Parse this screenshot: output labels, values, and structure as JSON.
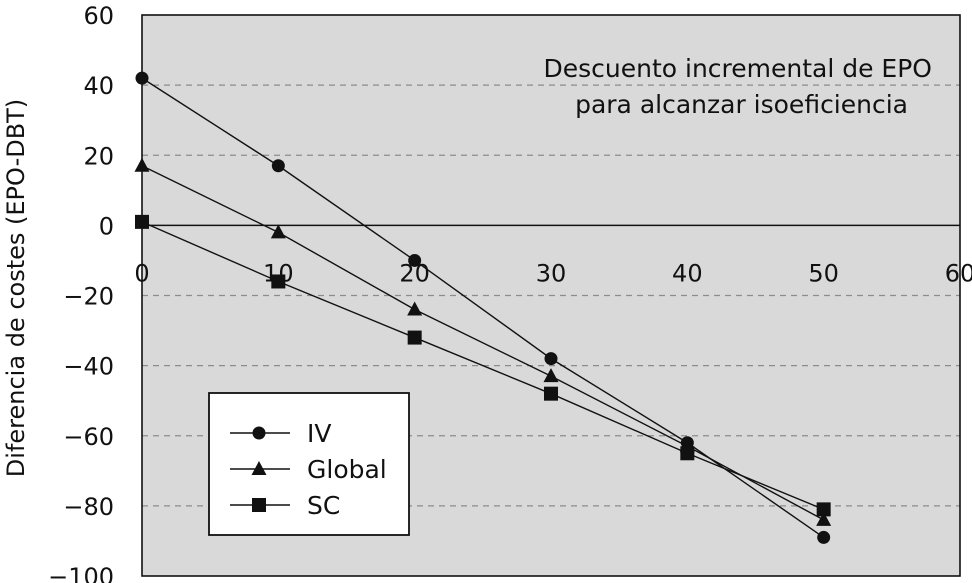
{
  "chart_data": {
    "type": "line",
    "title_lines": [
      "Descuento incremental de EPO",
      "para alcanzar isoeficiencia"
    ],
    "xlabel": "",
    "ylabel": "Diferencia de costes (EPO-DBT)",
    "xlim": [
      0,
      60
    ],
    "ylim": [
      -100,
      60
    ],
    "x_ticks": [
      0,
      10,
      20,
      30,
      40,
      50,
      60
    ],
    "y_ticks": [
      60,
      40,
      20,
      0,
      -20,
      -40,
      -60,
      -80,
      -100
    ],
    "y_tick_labels": [
      "60",
      "40",
      "20",
      "0",
      "−20",
      "−40",
      "−60",
      "−80",
      "−100"
    ],
    "grid": "horizontal dashed",
    "legend_position": "bottom-left",
    "colors": {
      "background": "#d9d9d9",
      "line": "#111111",
      "grid": "#8c8c8c"
    },
    "x": [
      0,
      10,
      20,
      30,
      40,
      50
    ],
    "series": [
      {
        "name": "IV",
        "marker": "circle",
        "values": [
          42,
          17,
          -10,
          -38,
          -62,
          -89
        ]
      },
      {
        "name": "Global",
        "marker": "triangle",
        "values": [
          17,
          -2,
          -24,
          -43,
          -63,
          -84
        ]
      },
      {
        "name": "SC",
        "marker": "square",
        "values": [
          1,
          -16,
          -32,
          -48,
          -65,
          -81
        ]
      }
    ]
  }
}
